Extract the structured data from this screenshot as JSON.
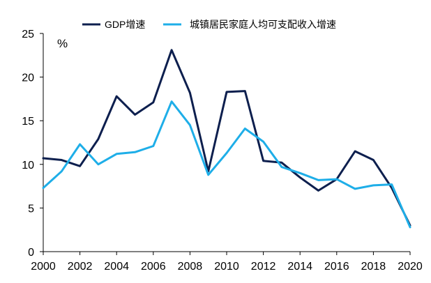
{
  "chart_data": {
    "type": "line",
    "x": [
      2000,
      2001,
      2002,
      2003,
      2004,
      2005,
      2006,
      2007,
      2008,
      2009,
      2010,
      2011,
      2012,
      2013,
      2014,
      2015,
      2016,
      2017,
      2018,
      2019,
      2020
    ],
    "series": [
      {
        "name": "GDP增速",
        "color": "#0d1f4e",
        "values": [
          10.7,
          10.5,
          9.8,
          12.9,
          17.8,
          15.7,
          17.1,
          23.1,
          18.2,
          9.2,
          18.3,
          18.4,
          10.4,
          10.2,
          8.5,
          7.0,
          8.3,
          11.5,
          10.5,
          7.3,
          3.0
        ]
      },
      {
        "name": "城镇居民家庭人均可支配收入增速",
        "color": "#1eaee8",
        "values": [
          7.3,
          9.2,
          12.3,
          10.0,
          11.2,
          11.4,
          12.1,
          17.2,
          14.5,
          8.8,
          11.3,
          14.1,
          12.6,
          9.7,
          9.0,
          8.2,
          8.3,
          7.2,
          7.6,
          7.7,
          2.8
        ]
      }
    ],
    "xticks": [
      "2000",
      "2002",
      "2004",
      "2006",
      "2008",
      "2010",
      "2012",
      "2014",
      "2016",
      "2018",
      "2020"
    ],
    "yticks": [
      "0",
      "5",
      "10",
      "15",
      "20",
      "25"
    ],
    "ylim": [
      0,
      25
    ],
    "xlim": [
      2000,
      2020
    ],
    "unit": "%",
    "legend_position": "top",
    "grid": false
  }
}
